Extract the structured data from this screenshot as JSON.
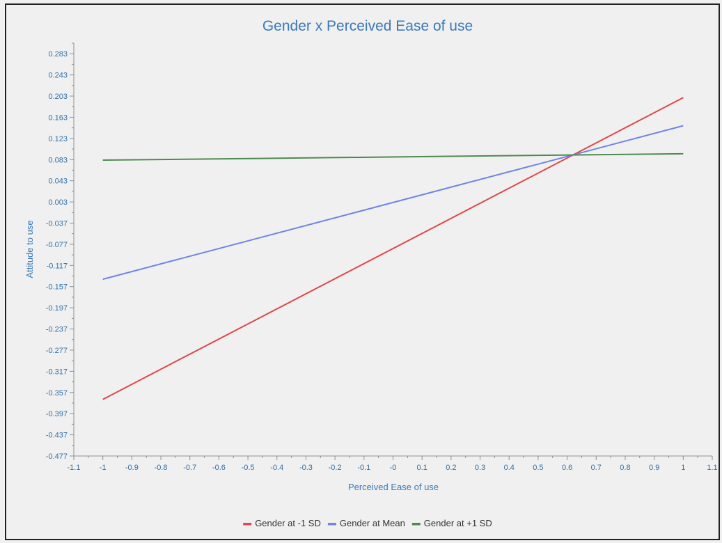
{
  "chart_data": {
    "type": "line",
    "title": "Gender x Perceived Ease of use",
    "xlabel": "Perceived Ease of use",
    "ylabel": "Attitude to use",
    "xlim": [
      -1.1,
      1.1
    ],
    "ylim": [
      -0.477,
      0.303
    ],
    "x_ticks": [
      -1.1,
      -1,
      -0.9,
      -0.8,
      -0.7,
      -0.6,
      -0.5,
      -0.4,
      -0.3,
      -0.2,
      -0.1,
      0,
      0.1,
      0.2,
      0.3,
      0.4,
      0.5,
      0.6,
      0.7,
      0.8,
      0.9,
      1,
      1.1
    ],
    "x_tick_labels": [
      "-1.1",
      "-1",
      "-0.9",
      "-0.8",
      "-0.7",
      "-0.6",
      "-0.5",
      "-0.4",
      "-0.3",
      "-0.2",
      "-0.1",
      "-0",
      "0.1",
      "0.2",
      "0.3",
      "0.4",
      "0.5",
      "0.6",
      "0.7",
      "0.8",
      "0.9",
      "1",
      "1.1"
    ],
    "y_ticks": [
      -0.477,
      -0.437,
      -0.397,
      -0.357,
      -0.317,
      -0.277,
      -0.237,
      -0.197,
      -0.157,
      -0.117,
      -0.077,
      -0.037,
      0.003,
      0.043,
      0.083,
      0.123,
      0.163,
      0.203,
      0.243,
      0.283
    ],
    "y_tick_labels": [
      "-0.477",
      "-0.437",
      "-0.397",
      "-0.357",
      "-0.317",
      "-0.277",
      "-0.237",
      "-0.197",
      "-0.157",
      "-0.117",
      "-0.077",
      "-0.037",
      "0.003",
      "0.043",
      "0.083",
      "0.123",
      "0.163",
      "0.203",
      "0.243",
      "0.283"
    ],
    "grid": false,
    "legend_position": "bottom-center",
    "series": [
      {
        "name": "Gender at -1 SD",
        "color": "#e0464a",
        "x": [
          -1,
          1
        ],
        "y": [
          -0.37,
          0.2
        ]
      },
      {
        "name": "Gender at Mean",
        "color": "#6f84e6",
        "x": [
          -1,
          1
        ],
        "y": [
          -0.143,
          0.147
        ]
      },
      {
        "name": "Gender at +1 SD",
        "color": "#4e8a4e",
        "x": [
          -1,
          1
        ],
        "y": [
          0.082,
          0.094
        ]
      }
    ]
  }
}
